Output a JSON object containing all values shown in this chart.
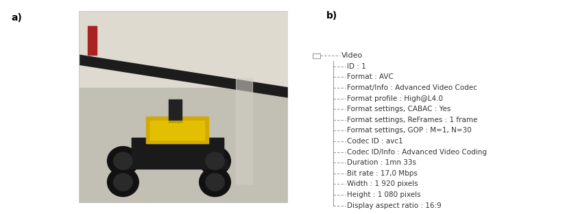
{
  "background_color": "#ffffff",
  "label_a": "a)",
  "label_b": "b)",
  "tree_lines": [
    {
      "text": "Video",
      "indent": 0,
      "connector": "minus"
    },
    {
      "text": "ID : 1",
      "indent": 1,
      "connector": "branch"
    },
    {
      "text": "Format : AVC",
      "indent": 1,
      "connector": "branch"
    },
    {
      "text": "Format/Info : Advanced Video Codec",
      "indent": 1,
      "connector": "branch"
    },
    {
      "text": "Format profile : High@L4.0",
      "indent": 1,
      "connector": "branch"
    },
    {
      "text": "Format settings, CABAC : Yes",
      "indent": 1,
      "connector": "branch"
    },
    {
      "text": "Format settings, ReFrames : 1 frame",
      "indent": 1,
      "connector": "branch"
    },
    {
      "text": "Format settings, GOP : M=1, N=30",
      "indent": 1,
      "connector": "branch"
    },
    {
      "text": "Codec ID : avc1",
      "indent": 1,
      "connector": "branch"
    },
    {
      "text": "Codec ID/Info : Advanced Video Coding",
      "indent": 1,
      "connector": "branch"
    },
    {
      "text": "Duration : 1mn 33s",
      "indent": 1,
      "connector": "branch"
    },
    {
      "text": "Bit rate : 17,0 Mbps",
      "indent": 1,
      "connector": "branch"
    },
    {
      "text": "Width : 1 920 pixels",
      "indent": 1,
      "connector": "branch"
    },
    {
      "text": "Height : 1 080 pixels",
      "indent": 1,
      "connector": "branch"
    },
    {
      "text": "Display aspect ratio : 16:9",
      "indent": 1,
      "connector": "last"
    }
  ],
  "photo_bg": "#b8b8b8",
  "photo_floor_upper": "#d8d6ce",
  "photo_floor_lower": "#c0bdb2",
  "photo_wall_line": "#1a1a1a",
  "photo_robot_dark": "#1a1a1a",
  "photo_robot_yellow": "#d4b800",
  "text_color": "#333333",
  "tree_color": "#999999",
  "font_size": 7.5,
  "label_font_size": 10,
  "photo_border_color": "#cccccc"
}
